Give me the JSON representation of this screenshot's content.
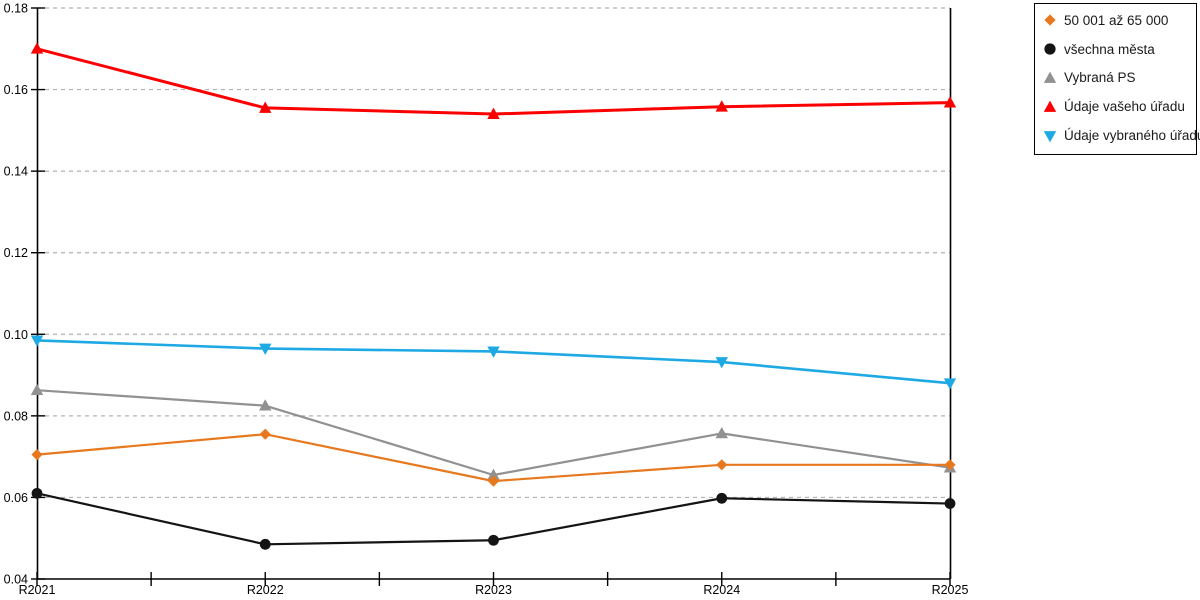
{
  "chart_data": {
    "type": "line",
    "title": "",
    "xlabel": "",
    "ylabel": "",
    "categories": [
      "R2021",
      "R2022",
      "R2023",
      "R2024",
      "R2025"
    ],
    "series": [
      {
        "name": "50 001 až 65 000",
        "color": "#E8781E",
        "marker": "diamond",
        "line_width": 2.2,
        "values": [
          0.0705,
          0.0755,
          0.064,
          0.068,
          0.068
        ]
      },
      {
        "name": "všechna města",
        "color": "#141414",
        "marker": "circle",
        "line_width": 2.2,
        "values": [
          0.061,
          0.0485,
          0.0495,
          0.0598,
          0.0585
        ]
      },
      {
        "name": "Vybraná PS",
        "color": "#919191",
        "marker": "triangle-up",
        "line_width": 2.2,
        "values": [
          0.0863,
          0.0825,
          0.0655,
          0.0757,
          0.0673
        ]
      },
      {
        "name": "Údaje vašeho úřadu",
        "color": "#FB0000",
        "marker": "triangle-up",
        "line_width": 3.0,
        "values": [
          0.17,
          0.1555,
          0.154,
          0.1558,
          0.1568
        ]
      },
      {
        "name": "Údaje vybraného úřadu",
        "color": "#1FA9E4",
        "marker": "triangle-down",
        "line_width": 2.6,
        "values": [
          0.0985,
          0.0965,
          0.0958,
          0.0932,
          0.088
        ]
      }
    ],
    "ylim": [
      0.04,
      0.18
    ],
    "yticks": [
      0.04,
      0.06,
      0.08,
      0.1,
      0.12,
      0.14,
      0.16,
      0.18
    ],
    "ytick_labels": [
      "0.04",
      "0.06",
      "0.08",
      "0.10",
      "0.12",
      "0.14",
      "0.16",
      "0.18"
    ],
    "grid": "horizontal-dashed",
    "legend_position": "outside-top-right",
    "draw_order": [
      2,
      1,
      0,
      3,
      4
    ]
  },
  "style": {
    "axis_color": "#000000",
    "gridline_color": "#b2b2b2",
    "background": "#ffffff",
    "tick_label_color": "#000000"
  }
}
